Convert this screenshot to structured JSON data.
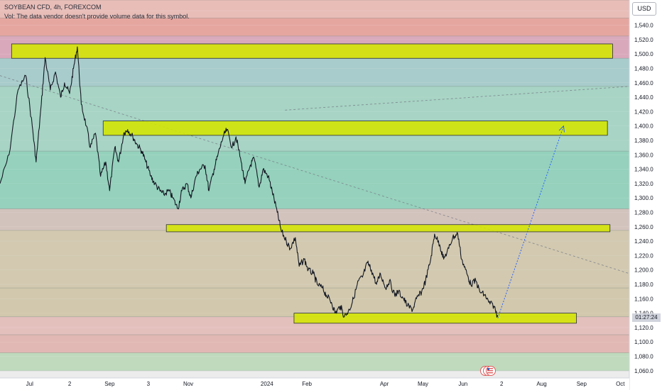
{
  "header": {
    "title": "SOYBEAN CFD, 4h, FOREXCOM",
    "vol_note": "Vol: The data vendor doesn't provide volume data for this symbol."
  },
  "toolbar": {
    "currency_label": "USD"
  },
  "countdown": "01:27:24",
  "icons": {
    "event_marker": "us-flag-icon"
  },
  "colors": {
    "candle": "#131722",
    "zone_fill": "#d4e600",
    "projection": "#2962ff",
    "trend_dashed": "#787b86"
  },
  "chart_data": {
    "type": "line",
    "title": "SOYBEAN CFD, 4h, FOREXCOM",
    "xlabel": "",
    "ylabel": "",
    "ylim": [
      1050,
      1575
    ],
    "yticks": [
      1060,
      1080,
      1100,
      1120,
      1140,
      1160,
      1180,
      1200,
      1220,
      1240,
      1260,
      1280,
      1300,
      1320,
      1340,
      1360,
      1380,
      1400,
      1420,
      1440,
      1460,
      1480,
      1500,
      1520,
      1540,
      1560
    ],
    "xlim": [
      "2023-06-08",
      "2024-10-08"
    ],
    "xticks": [
      {
        "date": "2023-07-01",
        "label": "Jul"
      },
      {
        "date": "2023-08-01",
        "label": "2"
      },
      {
        "date": "2023-09-01",
        "label": "Sep"
      },
      {
        "date": "2023-10-01",
        "label": "3"
      },
      {
        "date": "2023-11-01",
        "label": "Nov"
      },
      {
        "date": "2024-01-01",
        "label": "2024"
      },
      {
        "date": "2024-02-01",
        "label": "Feb"
      },
      {
        "date": "2024-04-01",
        "label": "Apr"
      },
      {
        "date": "2024-05-01",
        "label": "May"
      },
      {
        "date": "2024-06-01",
        "label": "Jun"
      },
      {
        "date": "2024-07-01",
        "label": "2"
      },
      {
        "date": "2024-08-01",
        "label": "Aug"
      },
      {
        "date": "2024-09-01",
        "label": "Sep"
      },
      {
        "date": "2024-10-01",
        "label": "Oct"
      }
    ],
    "price_series": {
      "name": "",
      "points": [
        [
          "2023-06-08",
          1320
        ],
        [
          "2023-06-15",
          1360
        ],
        [
          "2023-06-22",
          1450
        ],
        [
          "2023-06-28",
          1470
        ],
        [
          "2023-07-03",
          1400
        ],
        [
          "2023-07-06",
          1350
        ],
        [
          "2023-07-10",
          1430
        ],
        [
          "2023-07-13",
          1495
        ],
        [
          "2023-07-17",
          1450
        ],
        [
          "2023-07-21",
          1475
        ],
        [
          "2023-07-25",
          1440
        ],
        [
          "2023-07-28",
          1460
        ],
        [
          "2023-08-01",
          1445
        ],
        [
          "2023-08-04",
          1480
        ],
        [
          "2023-08-07",
          1510
        ],
        [
          "2023-08-10",
          1430
        ],
        [
          "2023-08-14",
          1400
        ],
        [
          "2023-08-17",
          1370
        ],
        [
          "2023-08-21",
          1390
        ],
        [
          "2023-08-25",
          1330
        ],
        [
          "2023-08-29",
          1350
        ],
        [
          "2023-09-01",
          1310
        ],
        [
          "2023-09-05",
          1370
        ],
        [
          "2023-09-08",
          1350
        ],
        [
          "2023-09-12",
          1390
        ],
        [
          "2023-09-15",
          1395
        ],
        [
          "2023-09-19",
          1385
        ],
        [
          "2023-09-22",
          1375
        ],
        [
          "2023-09-26",
          1365
        ],
        [
          "2023-09-29",
          1350
        ],
        [
          "2023-10-03",
          1330
        ],
        [
          "2023-10-06",
          1320
        ],
        [
          "2023-10-10",
          1310
        ],
        [
          "2023-10-13",
          1305
        ],
        [
          "2023-10-17",
          1310
        ],
        [
          "2023-10-20",
          1300
        ],
        [
          "2023-10-24",
          1285
        ],
        [
          "2023-10-27",
          1310
        ],
        [
          "2023-10-31",
          1320
        ],
        [
          "2023-11-03",
          1300
        ],
        [
          "2023-11-07",
          1330
        ],
        [
          "2023-11-10",
          1340
        ],
        [
          "2023-11-14",
          1345
        ],
        [
          "2023-11-17",
          1310
        ],
        [
          "2023-11-21",
          1340
        ],
        [
          "2023-11-24",
          1360
        ],
        [
          "2023-11-28",
          1385
        ],
        [
          "2023-12-01",
          1395
        ],
        [
          "2023-12-05",
          1370
        ],
        [
          "2023-12-08",
          1385
        ],
        [
          "2023-12-12",
          1350
        ],
        [
          "2023-12-15",
          1320
        ],
        [
          "2023-12-19",
          1345
        ],
        [
          "2023-12-22",
          1355
        ],
        [
          "2023-12-26",
          1315
        ],
        [
          "2023-12-29",
          1340
        ],
        [
          "2024-01-02",
          1330
        ],
        [
          "2024-01-05",
          1310
        ],
        [
          "2024-01-09",
          1280
        ],
        [
          "2024-01-12",
          1255
        ],
        [
          "2024-01-16",
          1240
        ],
        [
          "2024-01-19",
          1230
        ],
        [
          "2024-01-23",
          1245
        ],
        [
          "2024-01-26",
          1205
        ],
        [
          "2024-01-30",
          1215
        ],
        [
          "2024-02-02",
          1200
        ],
        [
          "2024-02-06",
          1195
        ],
        [
          "2024-02-09",
          1180
        ],
        [
          "2024-02-13",
          1175
        ],
        [
          "2024-02-16",
          1165
        ],
        [
          "2024-02-20",
          1155
        ],
        [
          "2024-02-23",
          1140
        ],
        [
          "2024-02-27",
          1150
        ],
        [
          "2024-03-01",
          1135
        ],
        [
          "2024-03-05",
          1145
        ],
        [
          "2024-03-08",
          1160
        ],
        [
          "2024-03-12",
          1185
        ],
        [
          "2024-03-15",
          1190
        ],
        [
          "2024-03-19",
          1210
        ],
        [
          "2024-03-22",
          1200
        ],
        [
          "2024-03-26",
          1180
        ],
        [
          "2024-03-29",
          1195
        ],
        [
          "2024-04-02",
          1175
        ],
        [
          "2024-04-05",
          1185
        ],
        [
          "2024-04-09",
          1165
        ],
        [
          "2024-04-12",
          1170
        ],
        [
          "2024-04-16",
          1160
        ],
        [
          "2024-04-19",
          1150
        ],
        [
          "2024-04-23",
          1145
        ],
        [
          "2024-04-26",
          1160
        ],
        [
          "2024-04-30",
          1170
        ],
        [
          "2024-05-03",
          1185
        ],
        [
          "2024-05-07",
          1215
        ],
        [
          "2024-05-10",
          1250
        ],
        [
          "2024-05-14",
          1235
        ],
        [
          "2024-05-17",
          1215
        ],
        [
          "2024-05-21",
          1230
        ],
        [
          "2024-05-24",
          1245
        ],
        [
          "2024-05-28",
          1250
        ],
        [
          "2024-05-31",
          1215
        ],
        [
          "2024-06-04",
          1195
        ],
        [
          "2024-06-07",
          1180
        ],
        [
          "2024-06-11",
          1185
        ],
        [
          "2024-06-14",
          1170
        ],
        [
          "2024-06-18",
          1165
        ],
        [
          "2024-06-21",
          1155
        ],
        [
          "2024-06-25",
          1150
        ],
        [
          "2024-06-28",
          1135
        ]
      ]
    },
    "zones": [
      {
        "from": "2023-06-17",
        "to": "2024-09-25",
        "low": 1494,
        "high": 1514,
        "label": ""
      },
      {
        "from": "2023-08-27",
        "to": "2024-09-21",
        "low": 1387,
        "high": 1407,
        "label": ""
      },
      {
        "from": "2023-10-15",
        "to": "2024-09-23",
        "low": 1253,
        "high": 1263,
        "label": ""
      },
      {
        "from": "2024-01-22",
        "to": "2024-08-28",
        "low": 1126,
        "high": 1140,
        "label": ""
      }
    ],
    "projection": {
      "from": [
        "2024-06-28",
        1133
      ],
      "to": [
        "2024-08-18",
        1400
      ]
    },
    "trendlines": [
      {
        "style": "dashed",
        "from": [
          "2023-06-08",
          1470
        ],
        "to": [
          "2024-10-08",
          1195
        ]
      },
      {
        "style": "dashed",
        "from": [
          "2024-01-15",
          1422
        ],
        "to": [
          "2024-10-08",
          1455
        ]
      }
    ],
    "bands": [
      {
        "low": 1550,
        "high": 1575,
        "color": "#e8bdb8"
      },
      {
        "low": 1525,
        "high": 1550,
        "color": "#e6a6a0"
      },
      {
        "low": 1494,
        "high": 1525,
        "color": "#d9a9bb"
      },
      {
        "low": 1455,
        "high": 1494,
        "color": "#a8cccb"
      },
      {
        "low": 1365,
        "high": 1455,
        "color": "#a7d4c4"
      },
      {
        "low": 1285,
        "high": 1365,
        "color": "#95d1bc"
      },
      {
        "low": 1255,
        "high": 1285,
        "color": "#d3c3bd"
      },
      {
        "low": 1175,
        "high": 1255,
        "color": "#d2c9b0"
      },
      {
        "low": 1135,
        "high": 1175,
        "color": "#d1c8ad"
      },
      {
        "low": 1110,
        "high": 1135,
        "color": "#e4c0bd"
      },
      {
        "low": 1085,
        "high": 1110,
        "color": "#e1b8b3"
      },
      {
        "low": 1060,
        "high": 1085,
        "color": "#bfdabd"
      },
      {
        "low": 1050,
        "high": 1060,
        "color": "#ececec"
      }
    ],
    "grid": true,
    "legend": "none"
  }
}
